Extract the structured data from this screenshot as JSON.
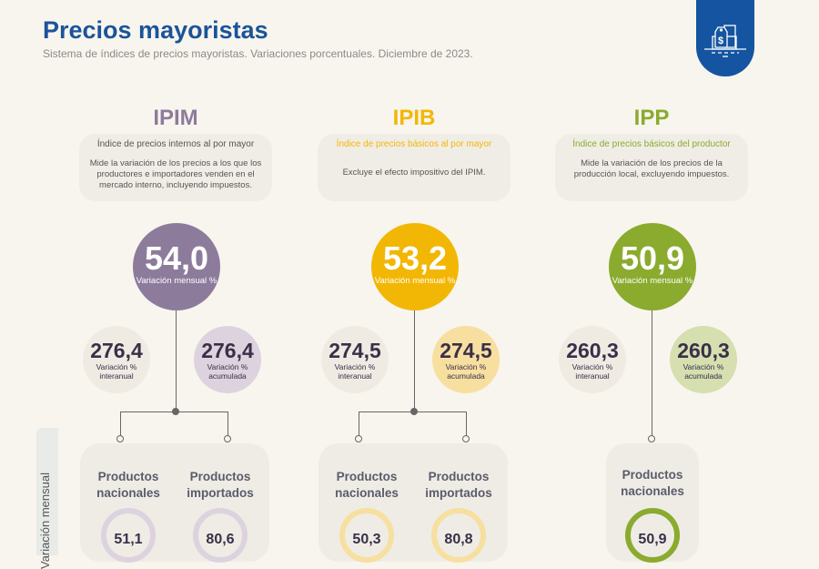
{
  "header": {
    "title": "Precios mayoristas",
    "subtitle": "Sistema de índices de precios mayoristas. Variaciones porcentuales. Diciembre de 2023."
  },
  "badge_icon": "price-tag-boxes-icon",
  "side_label": "Variación mensual",
  "indices": [
    {
      "acronym": "IPIM",
      "name": "Índice de precios internos al por mayor",
      "description": "Mide la variación de los precios a los que los productores e importadores venden en el mercado interno, incluyendo impuestos.",
      "color": "#8d7b9c",
      "light": "#dcd3de",
      "monthly": "54,0",
      "monthly_label": "Variación mensual %",
      "interannual": "276,4",
      "interannual_label": "Variación % interanual",
      "accumulated": "276,4",
      "accumulated_label": "Variación % acumulada",
      "products": [
        {
          "label": "Productos nacionales",
          "value": "51,1"
        },
        {
          "label": "Productos importados",
          "value": "80,6"
        }
      ]
    },
    {
      "acronym": "IPIB",
      "name": "Índice de precios básicos al por mayor",
      "description": "Excluye el efecto impositivo del IPIM.",
      "color": "#f2b705",
      "light": "#f7dfa0",
      "monthly": "53,2",
      "monthly_label": "Variación mensual %",
      "interannual": "274,5",
      "interannual_label": "Variación % interanual",
      "accumulated": "274,5",
      "accumulated_label": "Variación % acumulada",
      "products": [
        {
          "label": "Productos nacionales",
          "value": "50,3"
        },
        {
          "label": "Productos importados",
          "value": "80,8"
        }
      ]
    },
    {
      "acronym": "IPP",
      "name": "Índice de precios básicos del productor",
      "description": "Mide la variación de los precios de la producción local, excluyendo impuestos.",
      "color": "#8aab2e",
      "light": "#d5dfb0",
      "monthly": "50,9",
      "monthly_label": "Variación mensual %",
      "interannual": "260,3",
      "interannual_label": "Variación % interanual",
      "accumulated": "260,3",
      "accumulated_label": "Variación % acumulada",
      "products": [
        {
          "label": "Productos nacionales",
          "value": "50,9"
        }
      ]
    }
  ]
}
